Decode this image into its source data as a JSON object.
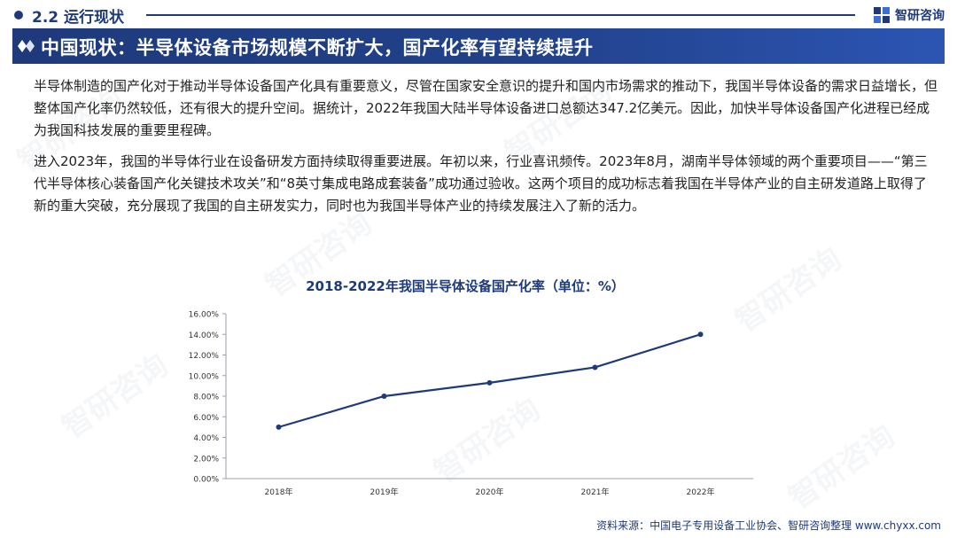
{
  "header": {
    "section_label": "2.2 运行现状",
    "brand_name": "智研咨询"
  },
  "banner": {
    "title": "中国现状：半导体设备市场规模不断扩大，国产化率有望持续提升"
  },
  "paragraphs": [
    "半导体制造的国产化对于推动半导体设备国产化具有重要意义，尽管在国家安全意识的提升和国内市场需求的推动下，我国半导体设备的需求日益增长，但整体国产化率仍然较低，还有很大的提升空间。据统计，2022年我国大陆半导体设备进口总额达347.2亿美元。因此，加快半导体设备国产化进程已经成为我国科技发展的重要里程碑。",
    "进入2023年，我国的半导体行业在设备研发方面持续取得重要进展。年初以来，行业喜讯频传。2023年8月，湖南半导体领域的两个重要项目——“第三代半导体核心装备国产化关键技术攻关”和“8英寸集成电路成套装备”成功通过验收。这两个项目的成功标志着我国在半导体产业的自主研发道路上取得了新的重大突破，充分展现了我国的自主研发实力，同时也为我国半导体产业的持续发展注入了新的活力。"
  ],
  "chart_data": {
    "type": "line",
    "title": "2018-2022年我国半导体设备国产化率（单位：%）",
    "categories": [
      "2018年",
      "2019年",
      "2020年",
      "2021年",
      "2022年"
    ],
    "series": [
      {
        "values": [
          5.0,
          8.0,
          9.3,
          10.8,
          14.0
        ]
      }
    ],
    "y_ticks": [
      "0.00%",
      "2.00%",
      "4.00%",
      "6.00%",
      "8.00%",
      "10.00%",
      "12.00%",
      "14.00%",
      "16.00%"
    ],
    "ylim": [
      0,
      16
    ],
    "grid": false,
    "line_color": "#1e3a7b"
  },
  "source": "资料来源：中国电子专用设备工业协会、智研咨询整理 www.chyxx.com",
  "colors": {
    "primary": "#1e3a7b"
  }
}
